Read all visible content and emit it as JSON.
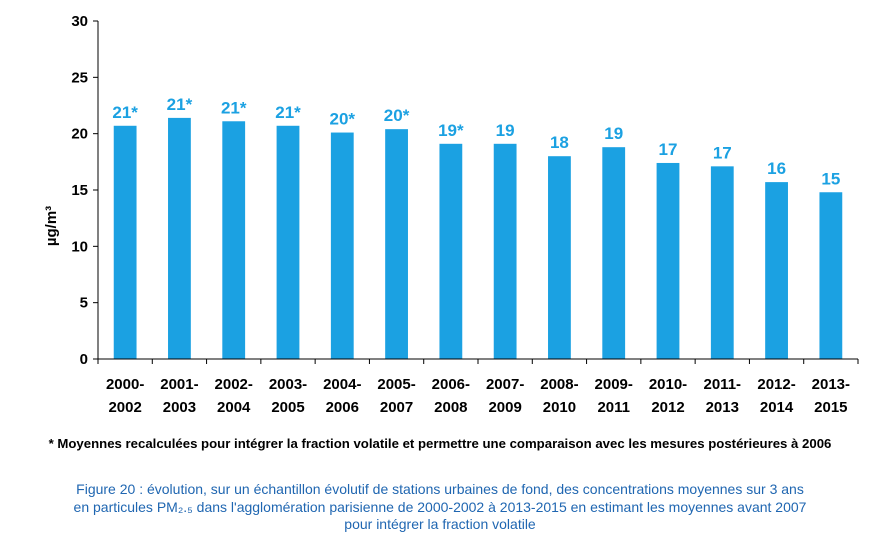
{
  "chart_data": {
    "type": "bar",
    "ylabel": "µg/m³",
    "ylim": [
      0,
      30
    ],
    "yticks": [
      0,
      5,
      10,
      15,
      20,
      25,
      30
    ],
    "grid": false,
    "bar_color": "#1ba1e2",
    "label_color": "#1ba1e2",
    "categories": [
      [
        "2000-",
        "2002"
      ],
      [
        "2001-",
        "2003"
      ],
      [
        "2002-",
        "2004"
      ],
      [
        "2003-",
        "2005"
      ],
      [
        "2004-",
        "2006"
      ],
      [
        "2005-",
        "2007"
      ],
      [
        "2006-",
        "2008"
      ],
      [
        "2007-",
        "2009"
      ],
      [
        "2008-",
        "2010"
      ],
      [
        "2009-",
        "2011"
      ],
      [
        "2010-",
        "2012"
      ],
      [
        "2011-",
        "2013"
      ],
      [
        "2012-",
        "2014"
      ],
      [
        "2013-",
        "2015"
      ]
    ],
    "values": [
      20.7,
      21.4,
      21.1,
      20.7,
      20.1,
      20.4,
      19.1,
      19.1,
      18.0,
      18.8,
      17.4,
      17.1,
      15.7,
      14.8
    ],
    "data_labels": [
      "21*",
      "21*",
      "21*",
      "21*",
      "20*",
      "20*",
      "19*",
      "19",
      "18",
      "19",
      "17",
      "17",
      "16",
      "15"
    ]
  },
  "footnote": "* Moyennes recalculées pour intégrer la fraction volatile et permettre une comparaison avec les mesures postérieures à 2006",
  "caption": {
    "line1": "Figure 20 : évolution, sur un échantillon évolutif de stations urbaines de fond, des concentrations moyennes sur 3 ans",
    "line2": "en particules PM₂.₅ dans l'agglomération parisienne de 2000-2002 à 2013-2015 en estimant les moyennes avant 2007",
    "line3": "pour intégrer la fraction volatile"
  }
}
